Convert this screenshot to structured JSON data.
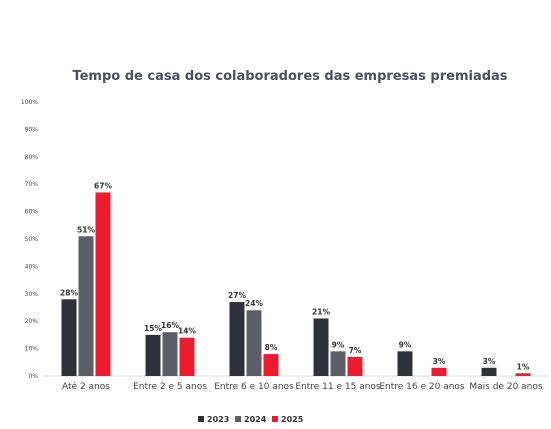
{
  "chart_data": {
    "type": "bar",
    "title": "Tempo de casa dos colaboradores das empresas premiadas",
    "xlabel": "",
    "ylabel": "",
    "ylim": [
      0,
      100
    ],
    "yticks": [
      "0%",
      "10%",
      "20%",
      "30%",
      "40%",
      "50%",
      "60%",
      "70%",
      "80%",
      "90%",
      "100%"
    ],
    "categories": [
      "Até 2 anos",
      "Entre 2 e 5 anos",
      "Entre 6 e 10 anos",
      "Entre 11 e 15 anos",
      "Entre 16 e 20 anos",
      "Mais de 20 anos"
    ],
    "series": [
      {
        "name": "2023",
        "color": "#2e3238",
        "values": [
          28,
          15,
          27,
          21,
          9,
          3
        ],
        "labels": [
          "28%",
          "15%",
          "27%",
          "21%",
          "9%",
          "3%"
        ]
      },
      {
        "name": "2024",
        "color": "#5c6066",
        "values": [
          51,
          16,
          24,
          9,
          null,
          null
        ],
        "labels": [
          "51%",
          "16%",
          "24%",
          "9%",
          "",
          ""
        ]
      },
      {
        "name": "2025",
        "color": "#ec1c2e",
        "values": [
          67,
          14,
          8,
          7,
          3,
          1
        ],
        "labels": [
          "67%",
          "14%",
          "8%",
          "7%",
          "3%",
          "1%"
        ]
      }
    ],
    "legend_position": "bottom",
    "grid": false
  }
}
